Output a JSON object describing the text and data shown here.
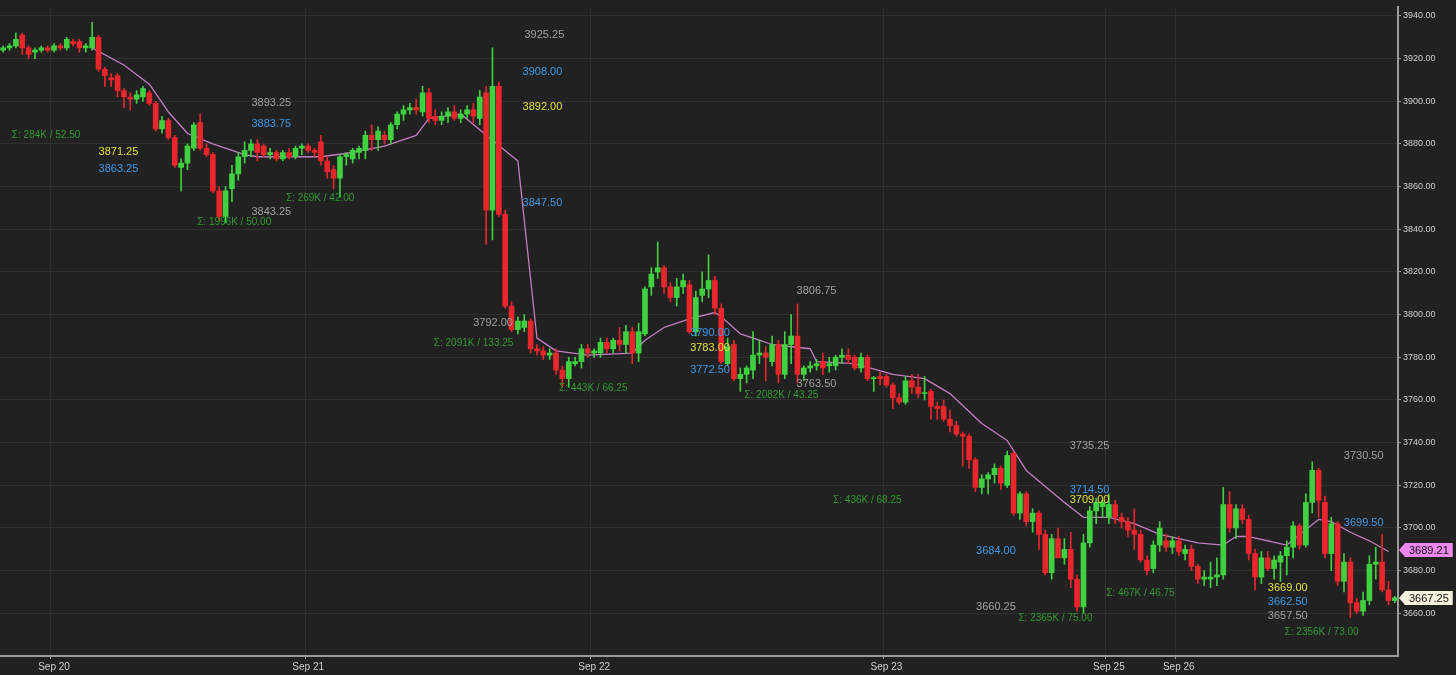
{
  "chart_data": {
    "type": "candlestick",
    "categories": [
      null,
      null,
      null,
      null,
      null,
      null,
      null,
      null,
      "Sep 20",
      null,
      null,
      null,
      null,
      null,
      null,
      null,
      null,
      null,
      null,
      null,
      null,
      null,
      null,
      null,
      null,
      null,
      null,
      null,
      null,
      null,
      null,
      null,
      null,
      null,
      null,
      null,
      null,
      null,
      null,
      null,
      null,
      null,
      null,
      null,
      null,
      null,
      null,
      null,
      "Sep 21",
      null,
      null,
      null,
      null,
      null,
      null,
      null,
      null,
      null,
      null,
      null,
      null,
      null,
      null,
      null,
      null,
      null,
      null,
      null,
      null,
      null,
      null,
      null,
      null,
      null,
      null,
      null,
      null,
      null,
      null,
      null,
      null,
      null,
      null,
      null,
      null,
      null,
      null,
      null,
      null,
      null,
      null,
      null,
      null,
      "Sep 22",
      null,
      null,
      null,
      null,
      null,
      null,
      null,
      null,
      null,
      null,
      null,
      null,
      null,
      null,
      null,
      null,
      null,
      null,
      null,
      null,
      null,
      null,
      null,
      null,
      null,
      null,
      null,
      null,
      null,
      null,
      null,
      null,
      null,
      null,
      null,
      null,
      null,
      null,
      null,
      null,
      null,
      null,
      null,
      null,
      null,
      "Sep 23",
      null,
      null,
      null,
      null,
      null,
      null,
      null,
      null,
      null,
      null,
      null,
      null,
      null,
      null,
      null,
      null,
      null,
      null,
      null,
      null,
      null,
      null,
      null,
      null,
      null,
      null,
      null,
      null,
      null,
      null,
      null,
      null,
      null,
      null,
      "Sep 25",
      null,
      null,
      null,
      null,
      null,
      null,
      null,
      null,
      null,
      null,
      "Sep 26",
      null,
      null,
      null,
      null,
      null,
      null,
      null,
      null,
      null,
      null,
      null,
      null,
      null,
      null,
      null,
      null,
      null,
      null,
      null,
      null,
      null,
      null,
      null,
      null,
      null,
      null,
      null,
      null,
      null,
      null,
      null,
      null,
      null,
      null
    ],
    "ohlc": [
      [
        3924,
        3926,
        3923,
        3925
      ],
      [
        3925,
        3927,
        3924,
        3926
      ],
      [
        3926,
        3932,
        3925,
        3929
      ],
      [
        3931,
        3932,
        3922,
        3925
      ],
      [
        3925,
        3926,
        3920,
        3922
      ],
      [
        3923,
        3925,
        3920,
        3924
      ],
      [
        3924,
        3926,
        3923,
        3925
      ],
      [
        3925,
        3926,
        3923,
        3924
      ],
      [
        3924,
        3927,
        3923,
        3926
      ],
      [
        3926,
        3927,
        3924,
        3925
      ],
      [
        3925,
        3930,
        3924,
        3929
      ],
      [
        3928,
        3929,
        3926,
        3927
      ],
      [
        3928,
        3929,
        3923,
        3925
      ],
      [
        3925,
        3927,
        3923,
        3926
      ],
      [
        3925,
        3937,
        3924,
        3930
      ],
      [
        3930,
        3931,
        3914,
        3915
      ],
      [
        3915,
        3916,
        3907,
        3912
      ],
      [
        3911,
        3913,
        3907,
        3910
      ],
      [
        3912,
        3913,
        3902,
        3905
      ],
      [
        3905,
        3906,
        3897,
        3902
      ],
      [
        3902,
        3904,
        3896,
        3901
      ],
      [
        3901,
        3905,
        3899,
        3903
      ],
      [
        3902,
        3907,
        3900,
        3906
      ],
      [
        3904,
        3905,
        3898,
        3899
      ],
      [
        3899,
        3900,
        3886,
        3887
      ],
      [
        3887,
        3893,
        3885,
        3891
      ],
      [
        3891,
        3892,
        3882,
        3883
      ],
      [
        3883,
        3884,
        3869,
        3870
      ],
      [
        3869,
        3873,
        3858,
        3871
      ],
      [
        3871,
        3880,
        3868,
        3879
      ],
      [
        3878,
        3890,
        3877,
        3889
      ],
      [
        3890,
        3894,
        3877,
        3878
      ],
      [
        3878,
        3880,
        3874,
        3875
      ],
      [
        3875,
        3876,
        3857,
        3858
      ],
      [
        3858,
        3860,
        3844,
        3846
      ],
      [
        3846,
        3860,
        3843,
        3858
      ],
      [
        3859,
        3870,
        3853,
        3866
      ],
      [
        3866,
        3876,
        3863,
        3874
      ],
      [
        3874,
        3881,
        3871,
        3877
      ],
      [
        3877,
        3882,
        3874,
        3880
      ],
      [
        3880,
        3882,
        3872,
        3876
      ],
      [
        3879,
        3880,
        3874,
        3875
      ],
      [
        3875,
        3878,
        3873,
        3876
      ],
      [
        3876,
        3877,
        3872,
        3873
      ],
      [
        3873,
        3877,
        3872,
        3876
      ],
      [
        3876,
        3878,
        3873,
        3874
      ],
      [
        3874,
        3879,
        3873,
        3878
      ],
      [
        3878,
        3880,
        3875,
        3879
      ],
      [
        3879,
        3880,
        3876,
        3877
      ],
      [
        3877,
        3878,
        3874,
        3876
      ],
      [
        3881,
        3884,
        3870,
        3872
      ],
      [
        3872,
        3874,
        3864,
        3867
      ],
      [
        3868,
        3870,
        3859,
        3864
      ],
      [
        3864,
        3875,
        3855,
        3874
      ],
      [
        3874,
        3876,
        3870,
        3875
      ],
      [
        3873,
        3878,
        3871,
        3877
      ],
      [
        3876,
        3879,
        3873,
        3878
      ],
      [
        3877,
        3886,
        3873,
        3884
      ],
      [
        3884,
        3889,
        3877,
        3882
      ],
      [
        3882,
        3888,
        3877,
        3886
      ],
      [
        3884,
        3886,
        3880,
        3882
      ],
      [
        3882,
        3890,
        3880,
        3889
      ],
      [
        3889,
        3895,
        3887,
        3894
      ],
      [
        3894,
        3898,
        3891,
        3896
      ],
      [
        3896,
        3899,
        3894,
        3897
      ],
      [
        3897,
        3901,
        3894,
        3896
      ],
      [
        3895,
        3907,
        3893,
        3904
      ],
      [
        3904,
        3906,
        3890,
        3892
      ],
      [
        3893,
        3896,
        3889,
        3891
      ],
      [
        3891,
        3895,
        3889,
        3893
      ],
      [
        3893,
        3897,
        3890,
        3895
      ],
      [
        3895,
        3898,
        3891,
        3892
      ],
      [
        3892,
        3896,
        3890,
        3894
      ],
      [
        3894,
        3898,
        3892,
        3896
      ],
      [
        3896,
        3899,
        3890,
        3893
      ],
      [
        3892,
        3905,
        3889,
        3902
      ],
      [
        3904,
        3907,
        3833,
        3849
      ],
      [
        3849,
        3925,
        3835,
        3907
      ],
      [
        3907,
        3909,
        3846,
        3847
      ],
      [
        3847,
        3849,
        3803,
        3804
      ],
      [
        3804,
        3806,
        3792,
        3793
      ],
      [
        3793,
        3799,
        3791,
        3797
      ],
      [
        3794,
        3800,
        3792,
        3797
      ],
      [
        3797,
        3798,
        3782,
        3784
      ],
      [
        3784,
        3786,
        3781,
        3783
      ],
      [
        3783,
        3785,
        3779,
        3781
      ],
      [
        3781,
        3784,
        3779,
        3782
      ],
      [
        3782,
        3784,
        3772,
        3774
      ],
      [
        3774,
        3776,
        3766,
        3770
      ],
      [
        3770,
        3780,
        3766,
        3778
      ],
      [
        3777,
        3780,
        3776,
        3778
      ],
      [
        3778,
        3786,
        3775,
        3784
      ],
      [
        3784,
        3786,
        3780,
        3782
      ],
      [
        3782,
        3784,
        3780,
        3783
      ],
      [
        3782,
        3789,
        3780,
        3787
      ],
      [
        3787,
        3789,
        3782,
        3784
      ],
      [
        3784,
        3789,
        3782,
        3788
      ],
      [
        3788,
        3794,
        3783,
        3786
      ],
      [
        3786,
        3795,
        3782,
        3792
      ],
      [
        3792,
        3794,
        3777,
        3782
      ],
      [
        3782,
        3796,
        3778,
        3792
      ],
      [
        3791,
        3813,
        3790,
        3812
      ],
      [
        3813,
        3822,
        3809,
        3819
      ],
      [
        3820,
        3834,
        3817,
        3822
      ],
      [
        3822,
        3823,
        3810,
        3813
      ],
      [
        3813,
        3815,
        3806,
        3808
      ],
      [
        3808,
        3817,
        3804,
        3813
      ],
      [
        3813,
        3819,
        3810,
        3816
      ],
      [
        3814,
        3816,
        3791,
        3792
      ],
      [
        3792,
        3811,
        3790,
        3808
      ],
      [
        3809,
        3820,
        3806,
        3812
      ],
      [
        3812,
        3828,
        3808,
        3816
      ],
      [
        3816,
        3818,
        3800,
        3803
      ],
      [
        3803,
        3805,
        3777,
        3778
      ],
      [
        3777,
        3789,
        3776,
        3785
      ],
      [
        3786,
        3788,
        3769,
        3770
      ],
      [
        3770,
        3775,
        3764,
        3772
      ],
      [
        3772,
        3776,
        3768,
        3775
      ],
      [
        3774,
        3792,
        3770,
        3781
      ],
      [
        3781,
        3788,
        3777,
        3782
      ],
      [
        3782,
        3785,
        3769,
        3780
      ],
      [
        3778,
        3790,
        3776,
        3786
      ],
      [
        3786,
        3788,
        3768,
        3772
      ],
      [
        3772,
        3792,
        3770,
        3786
      ],
      [
        3786,
        3800,
        3777,
        3790
      ],
      [
        3790,
        3805,
        3768,
        3772
      ],
      [
        3772,
        3776,
        3769,
        3775
      ],
      [
        3775,
        3778,
        3773,
        3776
      ],
      [
        3776,
        3779,
        3774,
        3777
      ],
      [
        3778,
        3782,
        3772,
        3775
      ],
      [
        3776,
        3780,
        3773,
        3777
      ],
      [
        3776,
        3781,
        3774,
        3780
      ],
      [
        3780,
        3784,
        3777,
        3781
      ],
      [
        3781,
        3784,
        3777,
        3779
      ],
      [
        3780,
        3781,
        3774,
        3775
      ],
      [
        3775,
        3782,
        3773,
        3780
      ],
      [
        3780,
        3781,
        3769,
        3770
      ],
      [
        3770,
        3771,
        3764,
        3770
      ],
      [
        3771,
        3773,
        3767,
        3770
      ],
      [
        3771,
        3772,
        3766,
        3767
      ],
      [
        3767,
        3768,
        3756,
        3761
      ],
      [
        3761,
        3763,
        3758,
        3759
      ],
      [
        3759,
        3771,
        3758,
        3769
      ],
      [
        3769,
        3772,
        3763,
        3766
      ],
      [
        3766,
        3772,
        3761,
        3763
      ],
      [
        3763,
        3771,
        3760,
        3763
      ],
      [
        3764,
        3765,
        3751,
        3757
      ],
      [
        3757,
        3759,
        3751,
        3756
      ],
      [
        3757,
        3760,
        3750,
        3751
      ],
      [
        3751,
        3755,
        3745,
        3748
      ],
      [
        3748,
        3750,
        3743,
        3744
      ],
      [
        3744,
        3745,
        3729,
        3743
      ],
      [
        3743,
        3744,
        3728,
        3732
      ],
      [
        3732,
        3733,
        3717,
        3719
      ],
      [
        3719,
        3725,
        3716,
        3723
      ],
      [
        3723,
        3726,
        3716,
        3725
      ],
      [
        3725,
        3730,
        3721,
        3728
      ],
      [
        3728,
        3729,
        3718,
        3721
      ],
      [
        3720,
        3736,
        3719,
        3734
      ],
      [
        3735,
        3736,
        3706,
        3707
      ],
      [
        3707,
        3717,
        3704,
        3716
      ],
      [
        3716,
        3717,
        3701,
        3703
      ],
      [
        3703,
        3709,
        3698,
        3707
      ],
      [
        3707,
        3708,
        3690,
        3697
      ],
      [
        3697,
        3699,
        3678,
        3679
      ],
      [
        3679,
        3697,
        3676,
        3695
      ],
      [
        3695,
        3700,
        3686,
        3686
      ],
      [
        3686,
        3695,
        3683,
        3690
      ],
      [
        3690,
        3698,
        3672,
        3676
      ],
      [
        3676,
        3678,
        3661,
        3663
      ],
      [
        3663,
        3697,
        3660,
        3693
      ],
      [
        3693,
        3710,
        3691,
        3708
      ],
      [
        3708,
        3714,
        3702,
        3712
      ],
      [
        3710,
        3713,
        3705,
        3712
      ],
      [
        3705,
        3716,
        3702,
        3711
      ],
      [
        3711,
        3713,
        3702,
        3705
      ],
      [
        3705,
        3707,
        3700,
        3703
      ],
      [
        3703,
        3705,
        3696,
        3699
      ],
      [
        3699,
        3709,
        3690,
        3697
      ],
      [
        3697,
        3699,
        3684,
        3685
      ],
      [
        3685,
        3687,
        3678,
        3680
      ],
      [
        3681,
        3694,
        3679,
        3692
      ],
      [
        3692,
        3703,
        3689,
        3700
      ],
      [
        3694,
        3697,
        3689,
        3691
      ],
      [
        3691,
        3696,
        3688,
        3694
      ],
      [
        3694,
        3696,
        3687,
        3689
      ],
      [
        3688,
        3692,
        3685,
        3690
      ],
      [
        3690,
        3692,
        3680,
        3682
      ],
      [
        3682,
        3683,
        3674,
        3676
      ],
      [
        3676,
        3680,
        3673,
        3677
      ],
      [
        3676,
        3684,
        3672,
        3677
      ],
      [
        3677,
        3686,
        3673,
        3678
      ],
      [
        3678,
        3719,
        3676,
        3711
      ],
      [
        3711,
        3717,
        3698,
        3700
      ],
      [
        3700,
        3711,
        3695,
        3709
      ],
      [
        3709,
        3711,
        3702,
        3704
      ],
      [
        3704,
        3706,
        3685,
        3688
      ],
      [
        3688,
        3690,
        3671,
        3677
      ],
      [
        3677,
        3689,
        3674,
        3686
      ],
      [
        3686,
        3689,
        3680,
        3681
      ],
      [
        3681,
        3687,
        3676,
        3685
      ],
      [
        3684,
        3689,
        3675,
        3687
      ],
      [
        3687,
        3694,
        3678,
        3691
      ],
      [
        3691,
        3703,
        3686,
        3701
      ],
      [
        3701,
        3702,
        3690,
        3692
      ],
      [
        3692,
        3716,
        3691,
        3712
      ],
      [
        3712,
        3731,
        3707,
        3727
      ],
      [
        3727,
        3728,
        3705,
        3713
      ],
      [
        3712,
        3715,
        3686,
        3688
      ],
      [
        3688,
        3705,
        3680,
        3702
      ],
      [
        3702,
        3703,
        3673,
        3675
      ],
      [
        3675,
        3688,
        3670,
        3684
      ],
      [
        3684,
        3686,
        3658,
        3665
      ],
      [
        3665,
        3667,
        3660,
        3661
      ],
      [
        3661,
        3670,
        3659,
        3666
      ],
      [
        3666,
        3687,
        3664,
        3683
      ],
      [
        3683,
        3691,
        3676,
        3684
      ],
      [
        3684,
        3697,
        3670,
        3671
      ],
      [
        3671,
        3675,
        3664,
        3666
      ],
      [
        3666,
        3668,
        3665,
        3667.25
      ]
    ],
    "series": [
      {
        "type": "line",
        "color": "#c47cc4",
        "values": [
          null,
          null,
          null,
          null,
          null,
          null,
          null,
          null,
          null,
          null,
          null,
          null,
          null,
          null,
          3925,
          null,
          null,
          null,
          null,
          3917,
          null,
          null,
          null,
          3908,
          null,
          null,
          3895,
          null,
          null,
          3885,
          null,
          null,
          null,
          3880,
          null,
          null,
          null,
          null,
          3875,
          null,
          3874,
          null,
          null,
          null,
          null,
          null,
          null,
          null,
          null,
          null,
          3874,
          null,
          null,
          null,
          null,
          3876,
          null,
          null,
          null,
          null,
          3879,
          null,
          null,
          null,
          null,
          3884,
          null,
          3892,
          null,
          null,
          null,
          null,
          3894,
          null,
          null,
          null,
          null,
          null,
          null,
          null,
          null,
          3872,
          null,
          null,
          3789,
          null,
          null,
          3783,
          null,
          null,
          null,
          null,
          3781,
          null,
          null,
          null,
          null,
          null,
          null,
          3782,
          null,
          3788,
          null,
          null,
          3794,
          null,
          null,
          null,
          3798,
          null,
          null,
          null,
          3801,
          3799,
          null,
          null,
          3791,
          null,
          null,
          null,
          null,
          3786,
          null,
          null,
          null,
          null,
          null,
          3784,
          3778,
          null,
          null,
          null,
          null,
          null,
          3777,
          null,
          null,
          null,
          null,
          null,
          3772,
          null,
          null,
          null,
          null,
          3770,
          null,
          null,
          null,
          3763,
          null,
          null,
          null,
          null,
          3749,
          null,
          null,
          null,
          3741,
          null,
          null,
          3727,
          null,
          null,
          null,
          null,
          null,
          3712,
          null,
          null,
          3705,
          null,
          null,
          3705,
          3705,
          null,
          null,
          null,
          3702,
          null,
          null,
          null,
          3697,
          null,
          null,
          null,
          null,
          null,
          3693,
          null,
          null,
          null,
          3692,
          null,
          3696,
          null,
          3696,
          null,
          null,
          null,
          null,
          null,
          3692,
          null,
          null,
          null,
          null,
          3704,
          null,
          3703,
          null,
          null,
          3698,
          null,
          null,
          3694,
          null,
          null,
          3689,
          null
        ]
      }
    ],
    "ylim": [
      3640,
      3944
    ],
    "yticks": [
      {
        "value": 3660,
        "label": "3660.00"
      },
      {
        "value": 3680,
        "label": "3680.00"
      },
      {
        "value": 3700,
        "label": "3700.00"
      },
      {
        "value": 3720,
        "label": "3720.00"
      },
      {
        "value": 3740,
        "label": "3740.00"
      },
      {
        "value": 3760,
        "label": "3760.00"
      },
      {
        "value": 3780,
        "label": "3780.00"
      },
      {
        "value": 3800,
        "label": "3800.00"
      },
      {
        "value": 3820,
        "label": "3820.00"
      },
      {
        "value": 3840,
        "label": "3840.00"
      },
      {
        "value": 3860,
        "label": "3860.00"
      },
      {
        "value": 3880,
        "label": "3880.00"
      },
      {
        "value": 3900,
        "label": "3900.00"
      },
      {
        "value": 3920,
        "label": "3920.00"
      },
      {
        "value": 3940,
        "label": "3940.00"
      }
    ],
    "grid": true,
    "annotations": [
      "Σ: 284K / 52.50",
      "3893.25",
      "3883.75",
      "3871.25",
      "3863.25",
      "3843.25",
      "Σ: 1996K / 50.00",
      "Σ: 269K / 42.00",
      "3925.25",
      "3908.00",
      "3892.00",
      "3847.50",
      "3792.00",
      "Σ: 2091K / 133.25",
      "Σ: 443K / 66.25",
      "3806.75",
      "3790.00",
      "3783.00",
      "3772.50",
      "3763.50",
      "Σ: 2082K / 43.25",
      "Σ: 436K / 68.25",
      "3735.25",
      "3714.50",
      "3709.00",
      "3684.00",
      "3660.25",
      "Σ: 2365K / 75.00",
      "Σ: 467K / 46.75",
      "3730.50",
      "3699.50",
      "3669.00",
      "3662.50",
      "3657.50",
      "Σ: 2356K / 73.00",
      "3689.21",
      "3667.25"
    ]
  }
}
